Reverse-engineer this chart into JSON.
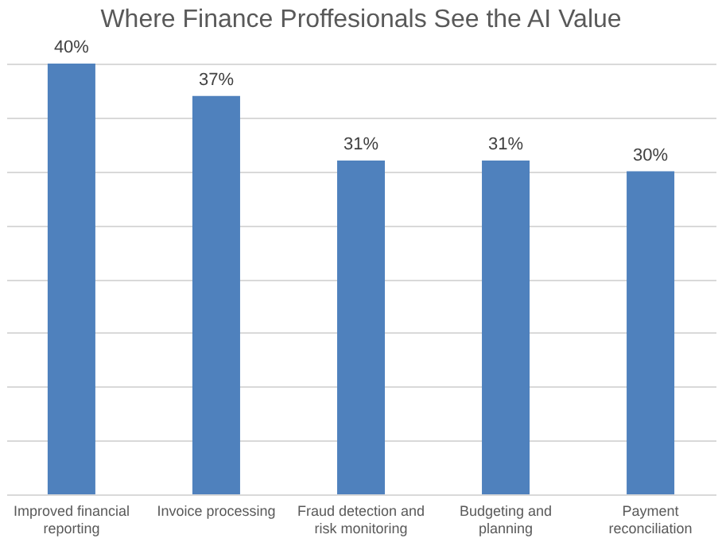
{
  "chart_data": {
    "type": "bar",
    "title": "Where Finance Proffesionals See the AI Value",
    "categories": [
      "Improved financial reporting",
      "Invoice processing",
      "Fraud detection and risk monitoring",
      "Budgeting and planning",
      "Payment reconciliation"
    ],
    "values": [
      40,
      37,
      31,
      31,
      30
    ],
    "color": "#4f81bd",
    "value_labels": [
      "40%",
      "37%",
      "31%",
      "31%",
      "30%"
    ],
    "grid": "y",
    "tick_labels": "x"
  }
}
